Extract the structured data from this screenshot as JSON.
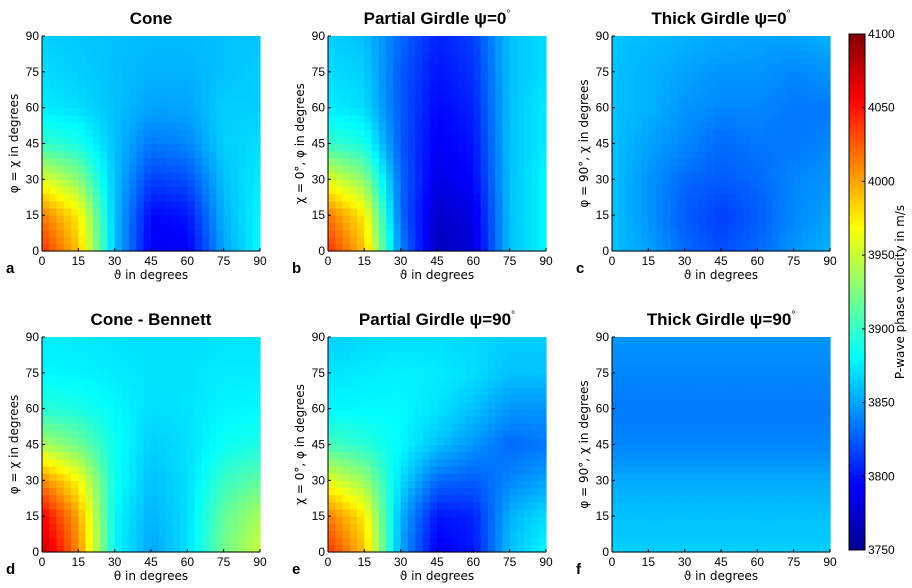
{
  "chart_data": {
    "type": "heatmap",
    "colorbar": {
      "label": "P-wave phase velocity in m/s",
      "range": [
        3750,
        4100
      ],
      "ticks": [
        "4100",
        "4050",
        "4000",
        "3950",
        "3900",
        "3850",
        "3800",
        "3750"
      ],
      "colormap": "jet"
    },
    "x_ticks": [
      "0",
      "15",
      "30",
      "45",
      "60",
      "75",
      "90"
    ],
    "y_ticks": [
      "0",
      "15",
      "30",
      "45",
      "60",
      "75",
      "90"
    ],
    "xlim": [
      0,
      90
    ],
    "ylim": [
      0,
      90
    ],
    "panels": [
      {
        "letter": "a",
        "title": "Cone",
        "title_sup": "",
        "xlabel": "ϑ in degrees",
        "ylabel": "φ = χ in degrees",
        "x": [
          0,
          15,
          30,
          45,
          60,
          75,
          90
        ],
        "y": [
          0,
          15,
          30,
          45,
          60,
          75,
          90
        ],
        "z": [
          [
            4040,
            3990,
            3860,
            3790,
            3790,
            3850,
            3880
          ],
          [
            4015,
            3975,
            3860,
            3795,
            3800,
            3855,
            3880
          ],
          [
            3960,
            3930,
            3860,
            3815,
            3820,
            3860,
            3875
          ],
          [
            3900,
            3890,
            3860,
            3835,
            3840,
            3865,
            3870
          ],
          [
            3875,
            3870,
            3860,
            3850,
            3850,
            3865,
            3865
          ],
          [
            3870,
            3865,
            3860,
            3855,
            3855,
            3860,
            3865
          ],
          [
            3865,
            3862,
            3860,
            3858,
            3858,
            3860,
            3862
          ]
        ]
      },
      {
        "letter": "b",
        "title": "Partial Girdle ψ=0",
        "title_sup": "°",
        "xlabel": "ϑ in degrees",
        "ylabel": "χ = 0°, φ in degrees",
        "x": [
          0,
          15,
          30,
          45,
          60,
          75,
          90
        ],
        "y": [
          0,
          15,
          30,
          45,
          60,
          75,
          90
        ],
        "z": [
          [
            4040,
            3990,
            3840,
            3770,
            3780,
            3860,
            3880
          ],
          [
            4015,
            3975,
            3830,
            3775,
            3785,
            3860,
            3880
          ],
          [
            3960,
            3930,
            3830,
            3785,
            3795,
            3860,
            3880
          ],
          [
            3900,
            3890,
            3825,
            3790,
            3800,
            3860,
            3875
          ],
          [
            3875,
            3870,
            3825,
            3795,
            3805,
            3860,
            3875
          ],
          [
            3870,
            3865,
            3825,
            3800,
            3810,
            3860,
            3870
          ],
          [
            3865,
            3860,
            3830,
            3805,
            3815,
            3860,
            3870
          ]
        ]
      },
      {
        "letter": "c",
        "title": "Thick Girdle ψ=0",
        "title_sup": "°",
        "xlabel": "ϑ in degrees",
        "ylabel": "φ = 90°, χ in degrees",
        "x": [
          0,
          15,
          30,
          45,
          60,
          75,
          90
        ],
        "y": [
          0,
          15,
          30,
          45,
          60,
          75,
          90
        ],
        "z": [
          [
            3860,
            3850,
            3830,
            3820,
            3830,
            3845,
            3855
          ],
          [
            3860,
            3845,
            3825,
            3815,
            3825,
            3840,
            3850
          ],
          [
            3860,
            3845,
            3830,
            3825,
            3830,
            3840,
            3845
          ],
          [
            3860,
            3850,
            3840,
            3830,
            3835,
            3835,
            3840
          ],
          [
            3860,
            3855,
            3845,
            3840,
            3840,
            3835,
            3835
          ],
          [
            3860,
            3855,
            3850,
            3845,
            3845,
            3840,
            3845
          ],
          [
            3862,
            3858,
            3855,
            3852,
            3850,
            3850,
            3855
          ]
        ]
      },
      {
        "letter": "d",
        "title": "Cone - Bennett",
        "title_sup": "",
        "xlabel": "θ in degrees",
        "ylabel": "φ = χ in degrees",
        "x": [
          0,
          15,
          30,
          45,
          60,
          75,
          90
        ],
        "y": [
          0,
          15,
          30,
          45,
          60,
          75,
          90
        ],
        "z": [
          [
            4080,
            4010,
            3880,
            3850,
            3870,
            3920,
            3950
          ],
          [
            4060,
            4000,
            3880,
            3855,
            3870,
            3915,
            3940
          ],
          [
            4010,
            3970,
            3885,
            3860,
            3870,
            3900,
            3915
          ],
          [
            3940,
            3920,
            3885,
            3865,
            3870,
            3885,
            3890
          ],
          [
            3895,
            3890,
            3880,
            3870,
            3872,
            3878,
            3880
          ],
          [
            3880,
            3878,
            3875,
            3872,
            3872,
            3875,
            3875
          ],
          [
            3875,
            3874,
            3872,
            3870,
            3870,
            3872,
            3872
          ]
        ]
      },
      {
        "letter": "e",
        "title": "Partial Girdle ψ=90",
        "title_sup": "°",
        "xlabel": "ϑ in degrees",
        "ylabel": "χ = 0°, φ in degrees",
        "x": [
          0,
          15,
          30,
          45,
          60,
          75,
          90
        ],
        "y": [
          0,
          15,
          30,
          45,
          60,
          75,
          90
        ],
        "z": [
          [
            4040,
            3990,
            3850,
            3790,
            3800,
            3860,
            3880
          ],
          [
            4015,
            3975,
            3855,
            3800,
            3805,
            3855,
            3870
          ],
          [
            3960,
            3935,
            3870,
            3830,
            3825,
            3840,
            3850
          ],
          [
            3905,
            3895,
            3880,
            3860,
            3845,
            3830,
            3835
          ],
          [
            3880,
            3880,
            3880,
            3872,
            3860,
            3845,
            3845
          ],
          [
            3872,
            3875,
            3877,
            3875,
            3870,
            3860,
            3860
          ],
          [
            3865,
            3868,
            3870,
            3870,
            3868,
            3865,
            3865
          ]
        ]
      },
      {
        "letter": "f",
        "title": "Thick Girdle ψ=90",
        "title_sup": "°",
        "xlabel": "ϑ in degrees",
        "ylabel": "φ = 90°, χ in degrees",
        "x": [
          0,
          15,
          30,
          45,
          60,
          75,
          90
        ],
        "y": [
          0,
          15,
          30,
          45,
          60,
          75,
          90
        ],
        "z": [
          [
            3865,
            3865,
            3865,
            3865,
            3865,
            3865,
            3865
          ],
          [
            3860,
            3860,
            3860,
            3860,
            3860,
            3860,
            3860
          ],
          [
            3852,
            3852,
            3852,
            3852,
            3852,
            3852,
            3852
          ],
          [
            3840,
            3840,
            3840,
            3840,
            3840,
            3840,
            3840
          ],
          [
            3836,
            3836,
            3836,
            3836,
            3836,
            3836,
            3836
          ],
          [
            3840,
            3840,
            3840,
            3840,
            3840,
            3840,
            3840
          ],
          [
            3845,
            3845,
            3845,
            3845,
            3845,
            3845,
            3845
          ]
        ]
      }
    ]
  }
}
